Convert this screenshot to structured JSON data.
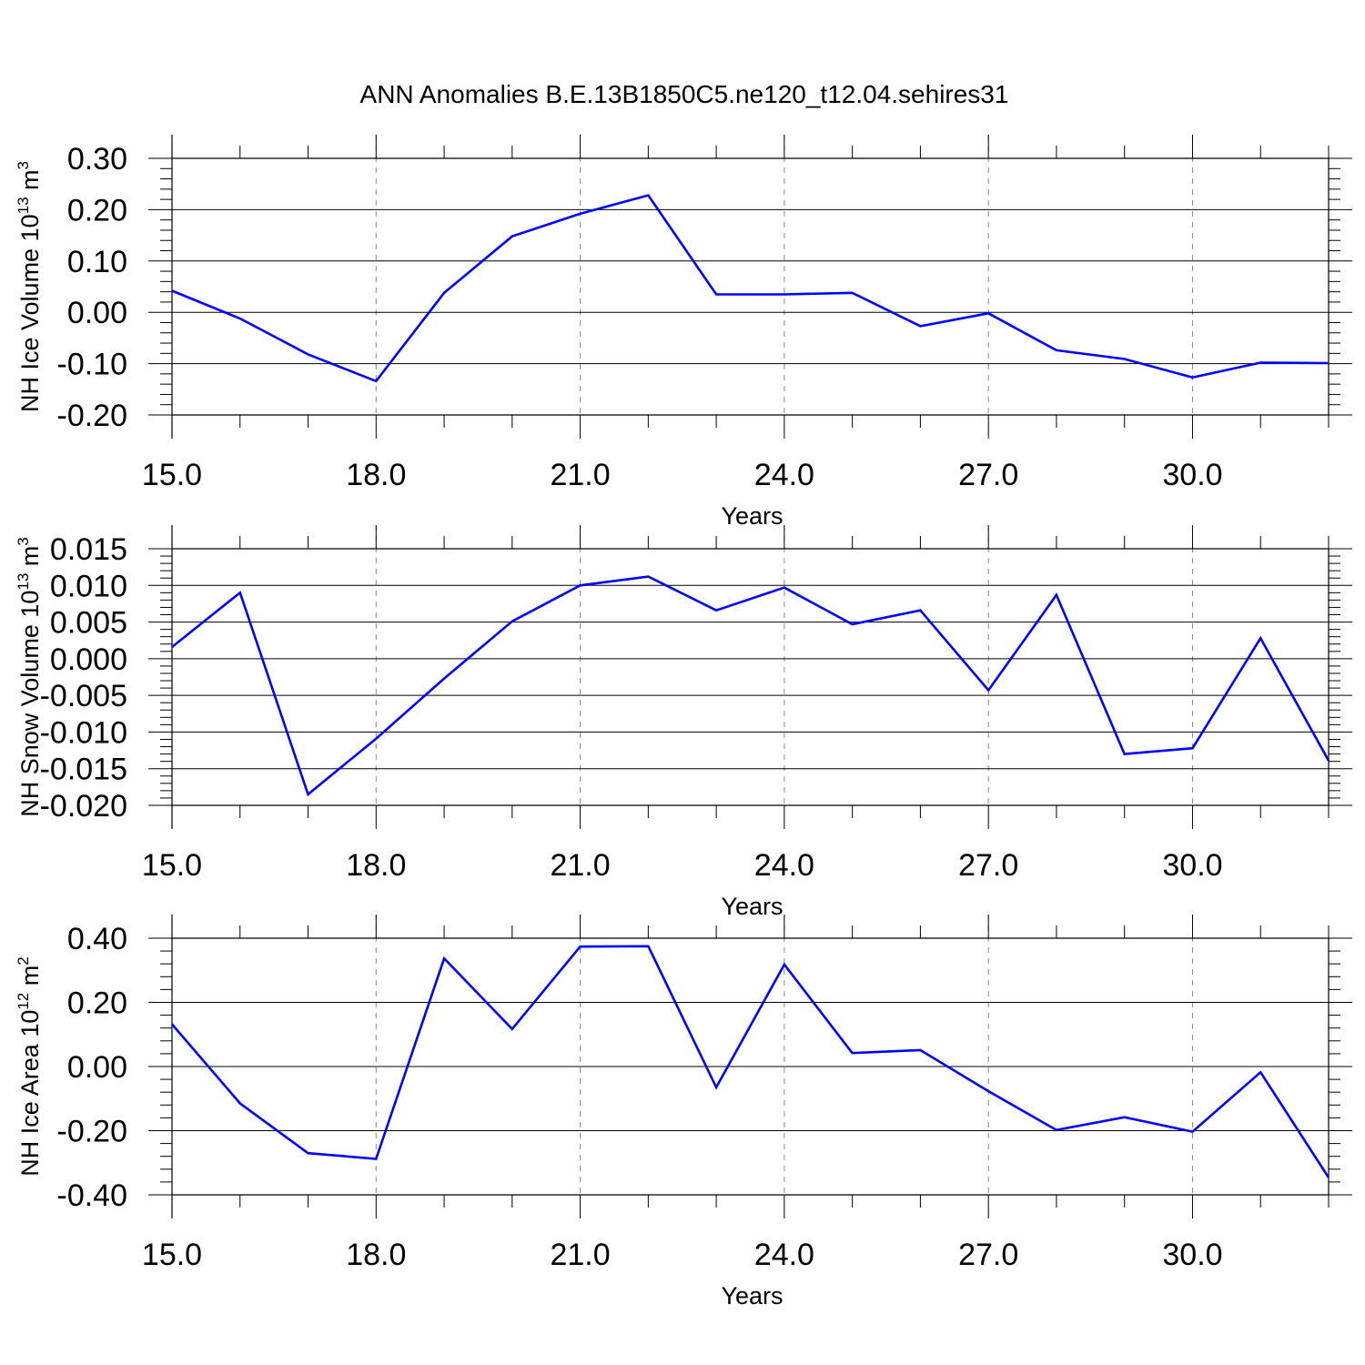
{
  "title": "ANN Anomalies B.E.13B1850C5.ne120_t12.04.sehires31",
  "colors": {
    "series": "#0000ff",
    "axis": "#000000",
    "grid": "#888888",
    "background": "#ffffff"
  },
  "chart_data": [
    {
      "type": "line",
      "xlabel": "Years",
      "ylabel_main": "NH Ice Volume 10",
      "ylabel_exp": "13",
      "ylabel_unit": "m",
      "ylabel_unit_exp": "3",
      "xlim": [
        15,
        32
      ],
      "ylim": [
        -0.2,
        0.3
      ],
      "grid": "vertical dashed at major x ticks",
      "x_ticks": [
        15,
        18,
        21,
        24,
        27,
        30
      ],
      "x_tick_labels": [
        "15.0",
        "18.0",
        "21.0",
        "24.0",
        "27.0",
        "30.0"
      ],
      "y_ticks": [
        -0.2,
        -0.1,
        0.0,
        0.1,
        0.2,
        0.3
      ],
      "y_tick_labels": [
        "-0.20",
        "-0.10",
        "0.00",
        "0.10",
        "0.20",
        "0.30"
      ],
      "x": [
        15,
        16,
        17,
        18,
        19,
        20,
        21,
        22,
        23,
        24,
        25,
        26,
        27,
        28,
        29,
        30,
        31,
        32
      ],
      "y": [
        0.042,
        -0.012,
        -0.082,
        -0.134,
        0.038,
        0.148,
        0.192,
        0.228,
        0.035,
        0.035,
        0.038,
        -0.027,
        -0.002,
        -0.074,
        -0.091,
        -0.127,
        -0.098,
        -0.099
      ]
    },
    {
      "type": "line",
      "xlabel": "Years",
      "ylabel_main": "NH Snow Volume 10",
      "ylabel_exp": "13",
      "ylabel_unit": "m",
      "ylabel_unit_exp": "3",
      "xlim": [
        15,
        32
      ],
      "ylim": [
        -0.02,
        0.015
      ],
      "grid": "vertical dashed at major x ticks",
      "x_ticks": [
        15,
        18,
        21,
        24,
        27,
        30
      ],
      "x_tick_labels": [
        "15.0",
        "18.0",
        "21.0",
        "24.0",
        "27.0",
        "30.0"
      ],
      "y_ticks": [
        -0.02,
        -0.015,
        -0.01,
        -0.005,
        0.0,
        0.005,
        0.01,
        0.015
      ],
      "y_tick_labels": [
        "-0.020",
        "-0.015",
        "-0.010",
        "-0.005",
        "0.000",
        "0.005",
        "0.010",
        "0.015"
      ],
      "x": [
        15,
        16,
        17,
        18,
        19,
        20,
        21,
        22,
        23,
        24,
        25,
        26,
        27,
        28,
        29,
        30,
        31,
        32
      ],
      "y": [
        0.0016,
        0.009,
        -0.0185,
        -0.0109,
        -0.0027,
        0.0051,
        0.01,
        0.0112,
        0.0066,
        0.0097,
        0.0047,
        0.0066,
        -0.0043,
        0.0087,
        -0.013,
        -0.0122,
        0.0028,
        -0.0139
      ]
    },
    {
      "type": "line",
      "xlabel": "Years",
      "ylabel_main": "NH Ice Area 10",
      "ylabel_exp": "12",
      "ylabel_unit": "m",
      "ylabel_unit_exp": "2",
      "xlim": [
        15,
        32
      ],
      "ylim": [
        -0.4,
        0.4
      ],
      "grid": "vertical dashed at major x ticks",
      "x_ticks": [
        15,
        18,
        21,
        24,
        27,
        30
      ],
      "x_tick_labels": [
        "15.0",
        "18.0",
        "21.0",
        "24.0",
        "27.0",
        "30.0"
      ],
      "y_ticks": [
        -0.4,
        -0.2,
        0.0,
        0.2,
        0.4
      ],
      "y_tick_labels": [
        "-0.40",
        "-0.20",
        "0.00",
        "0.20",
        "0.40"
      ],
      "x": [
        15,
        16,
        17,
        18,
        19,
        20,
        21,
        22,
        23,
        24,
        25,
        26,
        27,
        28,
        29,
        30,
        31,
        32
      ],
      "y": [
        0.132,
        -0.115,
        -0.27,
        -0.288,
        0.337,
        0.117,
        0.374,
        0.375,
        -0.065,
        0.318,
        0.042,
        0.051,
        -0.077,
        -0.198,
        -0.158,
        -0.203,
        -0.018,
        -0.346
      ]
    }
  ]
}
